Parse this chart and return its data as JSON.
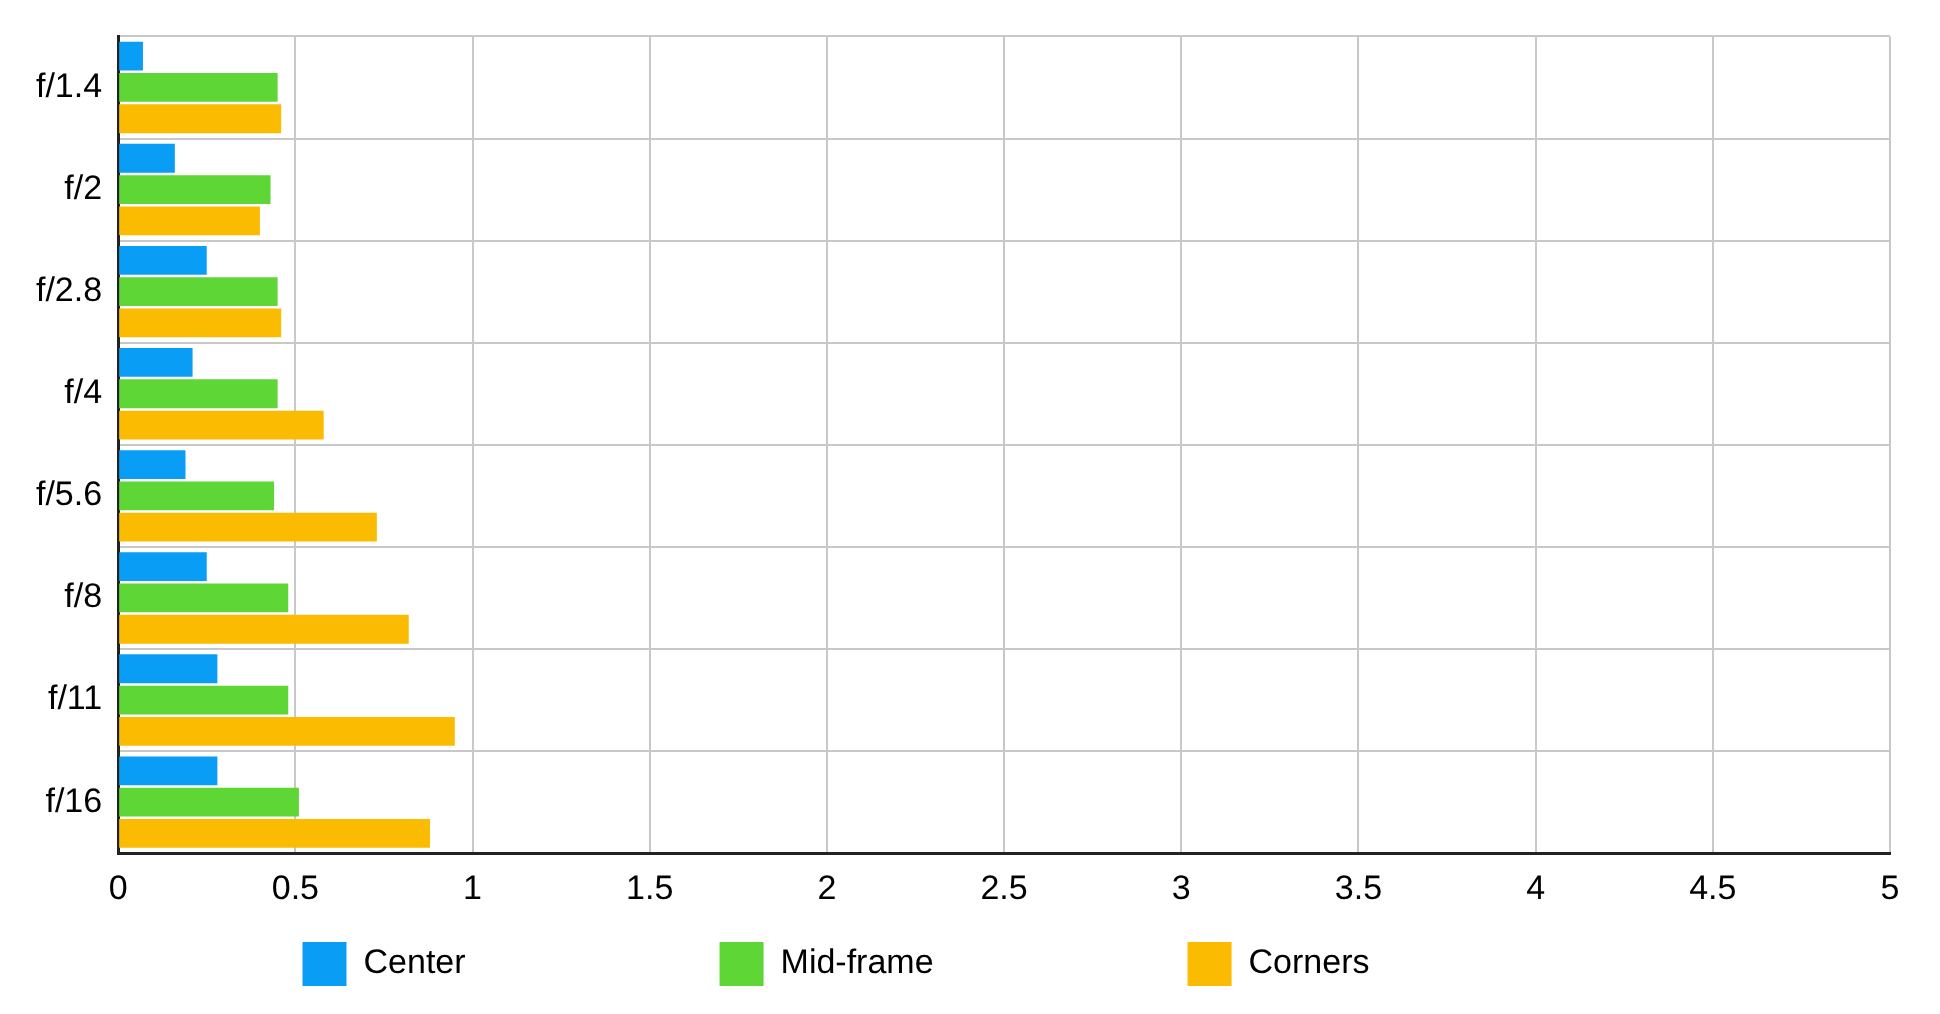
{
  "chart_data": {
    "type": "bar",
    "orientation": "horizontal",
    "categories": [
      "f/1.4",
      "f/2",
      "f/2.8",
      "f/4",
      "f/5.6",
      "f/8",
      "f/11",
      "f/16"
    ],
    "series": [
      {
        "name": "Center",
        "color": "#0a9df5",
        "values": [
          0.07,
          0.16,
          0.25,
          0.21,
          0.19,
          0.25,
          0.28,
          0.28
        ]
      },
      {
        "name": "Mid-frame",
        "color": "#5ed635",
        "values": [
          0.45,
          0.43,
          0.45,
          0.45,
          0.44,
          0.48,
          0.48,
          0.51
        ]
      },
      {
        "name": "Corners",
        "color": "#fbbb00",
        "values": [
          0.46,
          0.4,
          0.46,
          0.58,
          0.73,
          0.82,
          0.95,
          0.88
        ]
      }
    ],
    "xlim": [
      0,
      5
    ],
    "xticks": [
      0,
      0.5,
      1,
      1.5,
      2,
      2.5,
      3,
      3.5,
      4,
      4.5,
      5
    ],
    "grid": true,
    "legend": "bottom"
  }
}
